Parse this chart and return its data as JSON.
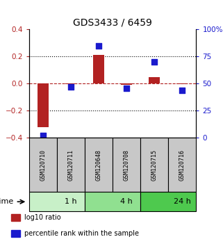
{
  "title": "GDS3433 / 6459",
  "samples": [
    "GSM120710",
    "GSM120711",
    "GSM120648",
    "GSM120708",
    "GSM120715",
    "GSM120716"
  ],
  "log10_ratio": [
    -0.32,
    -0.005,
    0.21,
    -0.01,
    0.05,
    -0.005
  ],
  "percentile_rank": [
    2,
    47,
    85,
    46,
    70,
    44
  ],
  "time_groups": [
    {
      "label": "1 h",
      "start": 0,
      "end": 2,
      "color": "#c8f0c8"
    },
    {
      "label": "4 h",
      "start": 2,
      "end": 4,
      "color": "#90e090"
    },
    {
      "label": "24 h",
      "start": 4,
      "end": 6,
      "color": "#4ec94e"
    }
  ],
  "bar_color": "#b22222",
  "dot_color": "#1a1acd",
  "left_ylim": [
    -0.4,
    0.4
  ],
  "right_ylim": [
    0,
    100
  ],
  "left_yticks": [
    -0.4,
    -0.2,
    0.0,
    0.2,
    0.4
  ],
  "right_yticks": [
    0,
    25,
    50,
    75,
    100
  ],
  "right_yticklabels": [
    "0",
    "25",
    "50",
    "75",
    "100%"
  ],
  "dotted_hlines": [
    -0.2,
    0.2
  ],
  "legend_items": [
    {
      "color": "#b22222",
      "label": "log10 ratio"
    },
    {
      "color": "#1a1acd",
      "label": "percentile rank within the sample"
    }
  ],
  "xlabel_time": "time",
  "bar_width": 0.4,
  "sample_label_color": "#c8c8c8",
  "sample_label_fontsize": 6.0,
  "title_fontsize": 10,
  "legend_fontsize": 7.0
}
